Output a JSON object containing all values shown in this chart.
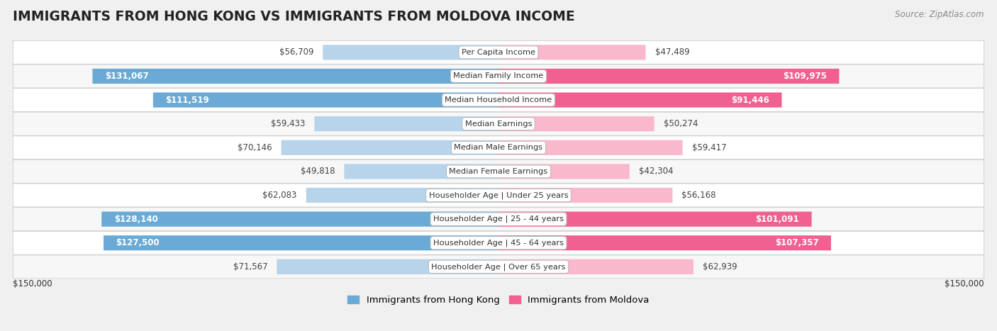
{
  "title": "IMMIGRANTS FROM HONG KONG VS IMMIGRANTS FROM MOLDOVA INCOME",
  "source": "Source: ZipAtlas.com",
  "categories": [
    "Per Capita Income",
    "Median Family Income",
    "Median Household Income",
    "Median Earnings",
    "Median Male Earnings",
    "Median Female Earnings",
    "Householder Age | Under 25 years",
    "Householder Age | 25 - 44 years",
    "Householder Age | 45 - 64 years",
    "Householder Age | Over 65 years"
  ],
  "hong_kong_values": [
    56709,
    131067,
    111519,
    59433,
    70146,
    49818,
    62083,
    128140,
    127500,
    71567
  ],
  "moldova_values": [
    47489,
    109975,
    91446,
    50274,
    59417,
    42304,
    56168,
    101091,
    107357,
    62939
  ],
  "hong_kong_labels": [
    "$56,709",
    "$131,067",
    "$111,519",
    "$59,433",
    "$70,146",
    "$49,818",
    "$62,083",
    "$128,140",
    "$127,500",
    "$71,567"
  ],
  "moldova_labels": [
    "$47,489",
    "$109,975",
    "$91,446",
    "$50,274",
    "$59,417",
    "$42,304",
    "$56,168",
    "$101,091",
    "$107,357",
    "$62,939"
  ],
  "hong_kong_color_light": "#b8d4ea",
  "hong_kong_color_dark": "#6aaad4",
  "moldova_color_light": "#f9b8cc",
  "moldova_color_dark": "#f06090",
  "inside_threshold": 80000,
  "max_value": 150000,
  "legend_hk": "Immigrants from Hong Kong",
  "legend_md": "Immigrants from Moldova",
  "background_color": "#f0f0f0",
  "row_bg_even": "#ffffff",
  "row_bg_odd": "#f7f7f7"
}
